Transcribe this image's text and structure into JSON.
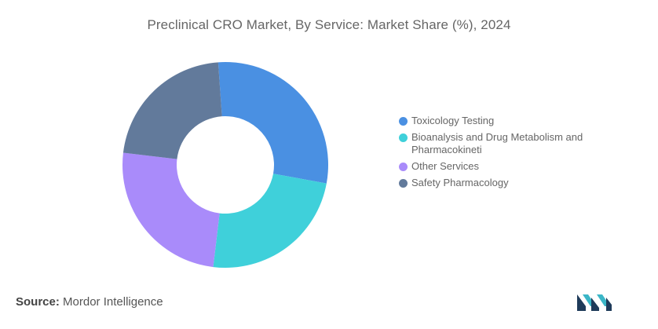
{
  "chart_data": {
    "type": "pie",
    "title": "Preclinical CRO Market, By Service: Market Share (%), 2024",
    "series": [
      {
        "name": "Toxicology Testing",
        "value": 29,
        "color": "#4a90e2"
      },
      {
        "name": "Bioanalysis and Drug Metabolism and Pharmacokineti",
        "value": 24,
        "color": "#3fd0da"
      },
      {
        "name": "Other Services",
        "value": 25,
        "color": "#a98bfa"
      },
      {
        "name": "Safety Pharmacology",
        "value": 22,
        "color": "#627a9b"
      }
    ],
    "legend_placement": "right",
    "donut": true
  },
  "source": {
    "label": "Source:",
    "value": "Mordor Intelligence"
  },
  "logo": {
    "name": "mordor-intelligence-logo",
    "colors": [
      "#1f3b5a",
      "#3bb6c7"
    ]
  }
}
